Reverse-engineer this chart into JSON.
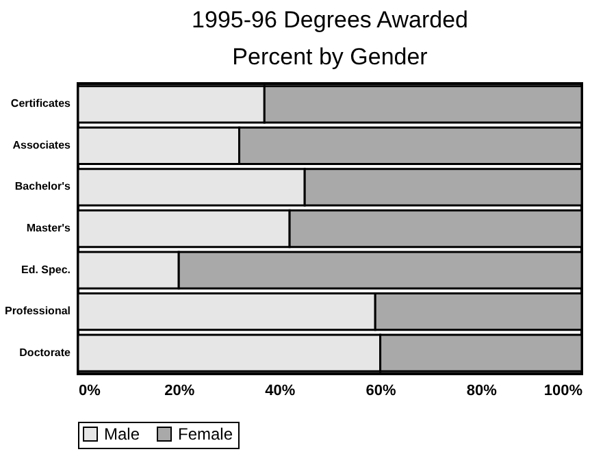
{
  "chart_data": {
    "type": "bar",
    "orientation": "horizontal",
    "stacked": true,
    "title": "1995-96 Degrees Awarded",
    "subtitle": "Percent by Gender",
    "categories": [
      "Certificates",
      "Associates",
      "Bachelor's",
      "Master's",
      "Ed. Spec.",
      "Professional",
      "Doctorate"
    ],
    "series": [
      {
        "name": "Male",
        "color": "#e6e6e6",
        "values": [
          37,
          32,
          45,
          42,
          20,
          59,
          60
        ]
      },
      {
        "name": "Female",
        "color": "#a9a9a9",
        "values": [
          63,
          68,
          55,
          58,
          80,
          41,
          40
        ]
      }
    ],
    "xlim": [
      0,
      100
    ],
    "xticks": [
      {
        "value": 0,
        "label": "0%"
      },
      {
        "value": 20,
        "label": "20%"
      },
      {
        "value": 40,
        "label": "40%"
      },
      {
        "value": 60,
        "label": "60%"
      },
      {
        "value": 80,
        "label": "80%"
      },
      {
        "value": 100,
        "label": "100%"
      }
    ],
    "grid": false,
    "legend": "bottom"
  }
}
